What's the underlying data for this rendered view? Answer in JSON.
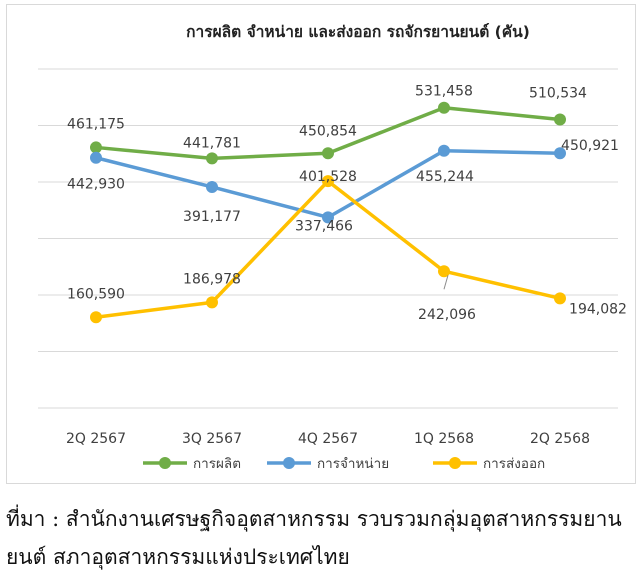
{
  "chart_data": {
    "type": "line",
    "title": "การผลิต จำหน่าย และส่งออก รถจักรยานยนต์ (คัน)",
    "categories": [
      "2Q 2567",
      "3Q 2567",
      "4Q 2567",
      "1Q 2568",
      "2Q 2568"
    ],
    "series": [
      {
        "name": "การผลิต",
        "color": "#70ad47",
        "values": [
          461175,
          441781,
          450854,
          531458,
          510534
        ],
        "labels": [
          "461,175",
          "441,781",
          "450,854",
          "531,458",
          "510,534"
        ]
      },
      {
        "name": "การจำหน่าย",
        "color": "#5b9bd5",
        "values": [
          442930,
          391177,
          337466,
          455244,
          450921
        ],
        "labels": [
          "442,930",
          "391,177",
          "337,466",
          "455,244",
          "450,921"
        ]
      },
      {
        "name": "การส่งออก",
        "color": "#ffc000",
        "values": [
          160590,
          186978,
          401528,
          242096,
          194082
        ],
        "labels": [
          "160,590",
          "186,978",
          "401,528",
          "242,096",
          "194,082"
        ]
      }
    ],
    "grid": true,
    "legend": "bottom"
  },
  "source_note": "ที่มา : สำนักงานเศรษฐกิจอุตสาหกรรม รวบรวมกลุ่มอุตสาหกรรมยานยนต์ สภาอุตสาหกรรมแห่งประเทศไทย"
}
